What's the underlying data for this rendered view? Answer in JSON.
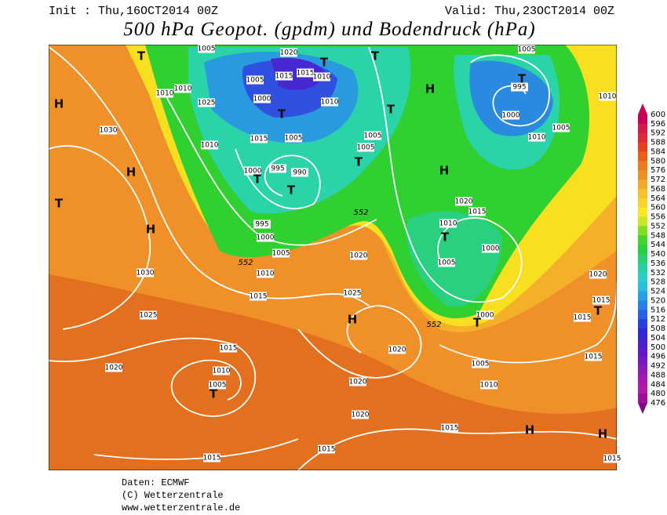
{
  "header": {
    "init": "Init : Thu,16OCT2014 00Z",
    "valid": "Valid: Thu,23OCT2014 00Z",
    "title": "500 hPa Geopot. (gpdm) und Bodendruck (hPa)"
  },
  "colorbar": {
    "labels": [
      600,
      596,
      592,
      588,
      584,
      580,
      576,
      572,
      568,
      564,
      560,
      556,
      552,
      548,
      544,
      540,
      536,
      532,
      528,
      524,
      520,
      516,
      512,
      508,
      504,
      500,
      496,
      492,
      488,
      484,
      480,
      476
    ]
  },
  "map": {
    "isobar_labels": [
      "1005",
      "1020",
      "1005",
      "1015",
      "1015",
      "1010",
      "1010",
      "1010",
      "1025",
      "1000",
      "1010",
      "1005",
      "995",
      "1000",
      "1010",
      "1005",
      "1010",
      "1030",
      "1010",
      "1015",
      "1005",
      "1005",
      "1005",
      "1000",
      "995",
      "990",
      "1020",
      "1015",
      "1010",
      "995",
      "1000",
      "1005",
      "1010",
      "1000",
      "1005",
      "1020",
      "1030",
      "1015",
      "1025",
      "1020",
      "1015",
      "1015",
      "1025",
      "1000",
      "1020",
      "1015",
      "1010",
      "1005",
      "1020",
      "1015",
      "1005",
      "1010",
      "1020",
      "1020",
      "1015",
      "1015",
      "1015",
      "1015"
    ],
    "pressure_centers": [
      "T",
      "H",
      "T",
      "T",
      "H",
      "T",
      "T",
      "T",
      "T",
      "H",
      "H",
      "T",
      "T",
      "T",
      "H",
      "T",
      "H",
      "T",
      "T",
      "T",
      "H",
      "H"
    ],
    "contour_labels": [
      "552",
      "552",
      "552"
    ]
  },
  "footer": {
    "lines": [
      "Daten: ECMWF",
      "(C) Wetterzentrale",
      "www.wetterzentrale.de"
    ]
  }
}
